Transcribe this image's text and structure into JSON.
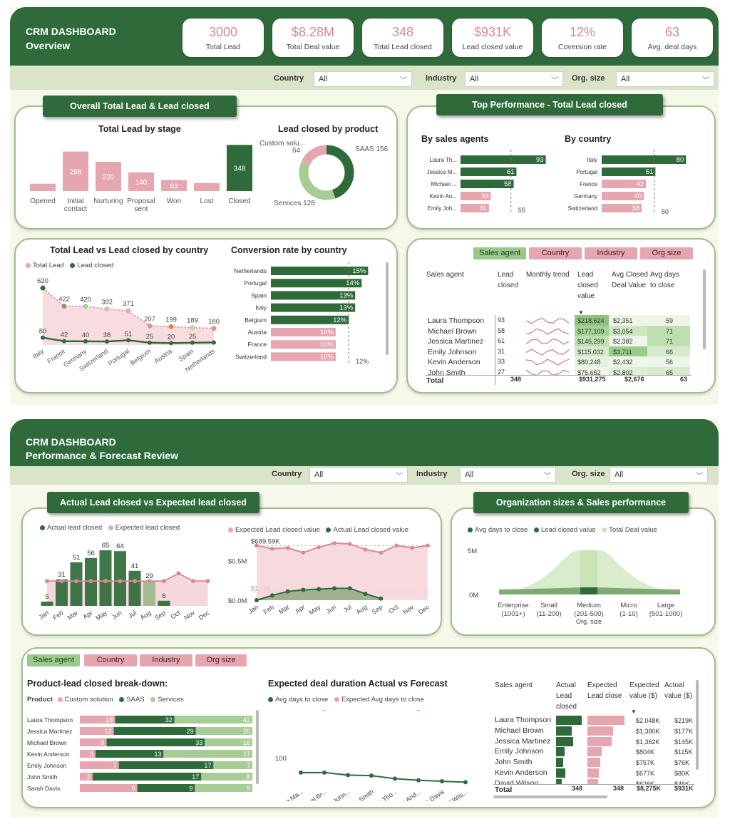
{
  "dash1": {
    "title1": "CRM DASHBOARD",
    "title2": "Overview",
    "kpis": [
      {
        "value": "3000",
        "label": "Total Lead"
      },
      {
        "value": "$8.28M",
        "label": "Total Deal value"
      },
      {
        "value": "348",
        "label": "Total Lead closed"
      },
      {
        "value": "$931K",
        "label": "Lead closed value"
      },
      {
        "value": "12%",
        "label": "Coversion rate"
      },
      {
        "value": "63",
        "label": "Avg. deal days"
      }
    ],
    "filters": [
      {
        "label": "Country",
        "value": "All"
      },
      {
        "label": "Industry",
        "value": "All"
      },
      {
        "label": "Org. size",
        "value": "All"
      }
    ],
    "pill_left": "Overall Total Lead & Lead closed",
    "pill_right": "Top Performance - Total Lead closed",
    "stage_title": "Total Lead by stage",
    "product_title": "Lead closed by product",
    "agents_title": "By sales agents",
    "country_title": "By country",
    "tlvlc_title": "Total Lead vs Lead closed by country",
    "conv_title": "Conversion rate by country",
    "tabs": [
      "Sales agent",
      "Country",
      "Industry",
      "Org size"
    ],
    "table": {
      "headers": [
        "Sales agent",
        "Lead closed",
        "Monthly trend",
        "Lead closed value",
        "Avg Closed Deal Value",
        "Avg days to close"
      ],
      "rows": [
        {
          "agent": "Laura Thompson",
          "closed": "93",
          "value": "$218,624",
          "avg": "$2,351",
          "days": "59"
        },
        {
          "agent": "Michael Brown",
          "closed": "58",
          "value": "$177,109",
          "avg": "$3,054",
          "days": "71"
        },
        {
          "agent": "Jessica Martinez",
          "closed": "61",
          "value": "$145,299",
          "avg": "$2,382",
          "days": "71"
        },
        {
          "agent": "Emily Johnson",
          "closed": "31",
          "value": "$115,032",
          "avg": "$3,711",
          "days": "66"
        },
        {
          "agent": "Kevin Anderson",
          "closed": "33",
          "value": "$80,248",
          "avg": "$2,432",
          "days": "56"
        },
        {
          "agent": "John Smith",
          "closed": "27",
          "value": "$75,652",
          "avg": "$2,802",
          "days": "65"
        }
      ],
      "total": {
        "label": "Total",
        "closed": "348",
        "value": "$931,275",
        "avg": "$2,676",
        "days": "63"
      }
    }
  },
  "dash2": {
    "title1": "CRM DASHBOARD",
    "title2": "Performance & Forecast Review",
    "filters": [
      {
        "label": "Country",
        "value": "All"
      },
      {
        "label": "Industry",
        "value": "All"
      },
      {
        "label": "Org. size",
        "value": "All"
      }
    ],
    "pill_left": "Actual Lead closed vs Expected lead closed",
    "pill_right": "Organization sizes & Sales performance",
    "tabs": [
      "Sales agent",
      "Country",
      "Industry",
      "Org size"
    ],
    "breakdown_title": "Product-lead closed break-down:",
    "duration_title": "Expected deal duration Actual vs Forecast",
    "table": {
      "headers": [
        "Sales agent",
        "Actual Lead closed",
        "Expected Lead close",
        "Expected value ($)",
        "Actual value ($)"
      ],
      "rows": [
        {
          "agent": "Laura Thompson",
          "exp_value": "$2,048K",
          "act_value": "$219K",
          "actual": 93,
          "expected": 160
        },
        {
          "agent": "Michael Brown",
          "exp_value": "$1,380K",
          "act_value": "$177K",
          "actual": 58,
          "expected": 110
        },
        {
          "agent": "Jessica Martinez",
          "exp_value": "$1,362K",
          "act_value": "$145K",
          "actual": 61,
          "expected": 105
        },
        {
          "agent": "Emily Johnson",
          "exp_value": "$804K",
          "act_value": "$115K",
          "actual": 31,
          "expected": 62
        },
        {
          "agent": "John Smith",
          "exp_value": "$757K",
          "act_value": "$76K",
          "actual": 27,
          "expected": 55
        },
        {
          "agent": "Kevin Anderson",
          "exp_value": "$677K",
          "act_value": "$80K",
          "actual": 33,
          "expected": 50
        },
        {
          "agent": "David Wilson",
          "exp_value": "$626K",
          "act_value": "$46K",
          "actual": 20,
          "expected": 45
        }
      ],
      "total": {
        "label": "Total",
        "actual": "348",
        "expected": "348",
        "exp_value": "$8,275K",
        "act_value": "$931K"
      }
    }
  },
  "chart_data": [
    {
      "id": "stage",
      "type": "bar",
      "title": "Total Lead by stage",
      "categories": [
        "Opened",
        "Initial contact",
        "Nurturing",
        "Proposal sent",
        "Won",
        "Lost",
        "Closed"
      ],
      "values": [
        55,
        298,
        220,
        140,
        83,
        60,
        348
      ],
      "labels": [
        "",
        "298",
        "220",
        "140",
        "83",
        "",
        "348"
      ]
    },
    {
      "id": "product",
      "type": "pie",
      "title": "Lead closed by product",
      "categories": [
        "SAAS",
        "Services",
        "Custom solu..."
      ],
      "values": [
        156,
        128,
        64
      ],
      "colors": [
        "#2f6b3a",
        "#a8cc95",
        "#e6a6b0"
      ]
    },
    {
      "id": "agents",
      "type": "bar",
      "title": "By sales agents",
      "categories": [
        "Laura Th...",
        "Jessica M...",
        "Michael ...",
        "Kevin An...",
        "Emily Joh..."
      ],
      "values": [
        93,
        61,
        58,
        33,
        31
      ],
      "reference": 55
    },
    {
      "id": "countries",
      "type": "bar",
      "title": "By country",
      "categories": [
        "Italy",
        "Portugal",
        "France",
        "Germany",
        "Switzerland"
      ],
      "values": [
        80,
        51,
        42,
        40,
        38
      ],
      "reference": 50
    },
    {
      "id": "tlvlc",
      "type": "area",
      "title": "Total Lead vs Lead closed by country",
      "categories": [
        "Italy",
        "France",
        "Germany",
        "Switzerland",
        "Portugal",
        "Belgium",
        "Austria",
        "Spain",
        "Netherlands"
      ],
      "series": [
        {
          "name": "Total Lead",
          "values": [
            620,
            422,
            420,
            392,
            371,
            207,
            199,
            189,
            180
          ]
        },
        {
          "name": "Lead closed",
          "values": [
            80,
            42,
            40,
            38,
            51,
            25,
            20,
            25,
            27
          ]
        }
      ],
      "labels_total": [
        "620",
        "422",
        "420",
        "392",
        "371",
        "207",
        "199",
        "189",
        "180"
      ],
      "labels_closed": [
        "80",
        "42",
        "40",
        "38",
        "51",
        "25",
        "20",
        "25",
        ""
      ]
    },
    {
      "id": "conv",
      "type": "bar",
      "title": "Conversion rate by country",
      "categories": [
        "Netherlands",
        "Portugal",
        "Spain",
        "Italy",
        "Belgium",
        "Austria",
        "France",
        "Switzerland"
      ],
      "values": [
        15,
        14,
        13,
        13,
        12,
        10,
        10,
        10
      ],
      "reference": 12,
      "reference_label": "12%"
    },
    {
      "id": "actexp",
      "type": "bar",
      "title": "Actual Lead closed vs Expected lead closed",
      "categories": [
        "Jan",
        "Feb",
        "Mar",
        "Apr",
        "May",
        "Jun",
        "Jul",
        "Aug",
        "Sep",
        "Oct",
        "Nov",
        "Dec"
      ],
      "series": [
        {
          "name": "Actual lead closed",
          "values": [
            5,
            31,
            51,
            56,
            65,
            64,
            41,
            29,
            6,
            0,
            0,
            0
          ]
        },
        {
          "name": "Expected lead closed",
          "values": [
            29,
            29,
            29,
            29,
            29,
            29,
            29,
            29,
            29,
            38,
            29,
            29
          ]
        }
      ],
      "labels": [
        "5",
        "31",
        "51",
        "56",
        "65",
        "64",
        "41",
        "29",
        "6",
        "",
        "",
        ""
      ]
    },
    {
      "id": "valuefc",
      "type": "area",
      "categories": [
        "Jan",
        "Feb",
        "Mar",
        "Apr",
        "May",
        "Jun",
        "Jul",
        "Aug",
        "Sep",
        "Oct",
        "Nov",
        "Dec"
      ],
      "series": [
        {
          "name": "Expected Lead closed value",
          "values": [
            0.69,
            0.65,
            0.66,
            0.6,
            0.67,
            0.72,
            0.71,
            0.64,
            0.6,
            0.69,
            0.66,
            0.69
          ]
        },
        {
          "name": "Actual Lead closed value",
          "values": [
            0.0,
            0.06,
            0.11,
            0.13,
            0.14,
            0.15,
            0.15,
            0.08,
            0.02,
            null,
            null,
            null
          ]
        }
      ],
      "yticks": [
        "$0.0M",
        "$0.5M"
      ],
      "ref_labels": [
        "$689.59K",
        "$103K"
      ]
    },
    {
      "id": "orgsize",
      "type": "area",
      "categories": [
        "Enterprise (1001+)",
        "Small (11-200)",
        "Medium (201-500)",
        "Micro (1-10)",
        "Large (501-1000)"
      ],
      "series": [
        {
          "name": "Avg days to close",
          "values": [
            0,
            0,
            0,
            0,
            0
          ]
        },
        {
          "name": "Lead closed value",
          "values": [
            0.02,
            0.05,
            0.25,
            0.03,
            0.02
          ]
        },
        {
          "name": "Total Deal value",
          "values": [
            0.3,
            0.6,
            5.5,
            0.5,
            0.3
          ]
        }
      ],
      "yticks": [
        "0M",
        "5M"
      ],
      "xlabel": "Org. size"
    },
    {
      "id": "breakdown",
      "type": "bar",
      "title": "Product-lead closed break-down:",
      "legend_title": "Product",
      "categories": [
        "Laura Thompson",
        "Jessica Martinez",
        "Michael Brown",
        "Kevin Anderson",
        "Emily Johnson",
        "John Smith",
        "Sarah Davis"
      ],
      "series": [
        {
          "name": "Custom solution",
          "values": [
            19,
            12,
            9,
            3,
            7,
            2,
            9
          ]
        },
        {
          "name": "SAAS",
          "values": [
            32,
            29,
            33,
            13,
            17,
            17,
            9
          ]
        },
        {
          "name": "Services",
          "values": [
            42,
            20,
            16,
            17,
            7,
            8,
            9
          ]
        }
      ]
    },
    {
      "id": "duration",
      "type": "line",
      "title": "Expected deal duration Actual vs Forecast",
      "categories": [
        "Jessica Ma...",
        "Michael Br...",
        "Emily John...",
        "John Smith",
        "Laura Tho...",
        "Kevin And...",
        "Sarah Davis",
        "David Wils..."
      ],
      "series": [
        {
          "name": "Avg days to close",
          "values": [
            71,
            71,
            66,
            65,
            59,
            56,
            54,
            52
          ]
        },
        {
          "name": "Expected Avg days to close",
          "values": [
            200,
            196,
            198,
            201,
            199,
            196,
            201,
            210
          ]
        }
      ],
      "yticks": [
        "100",
        "200"
      ]
    }
  ],
  "colors": {
    "green": "#2f6b3a",
    "pink": "#e6a6b0",
    "light_green": "#a8cc95",
    "bg": "#f6f8e9"
  }
}
